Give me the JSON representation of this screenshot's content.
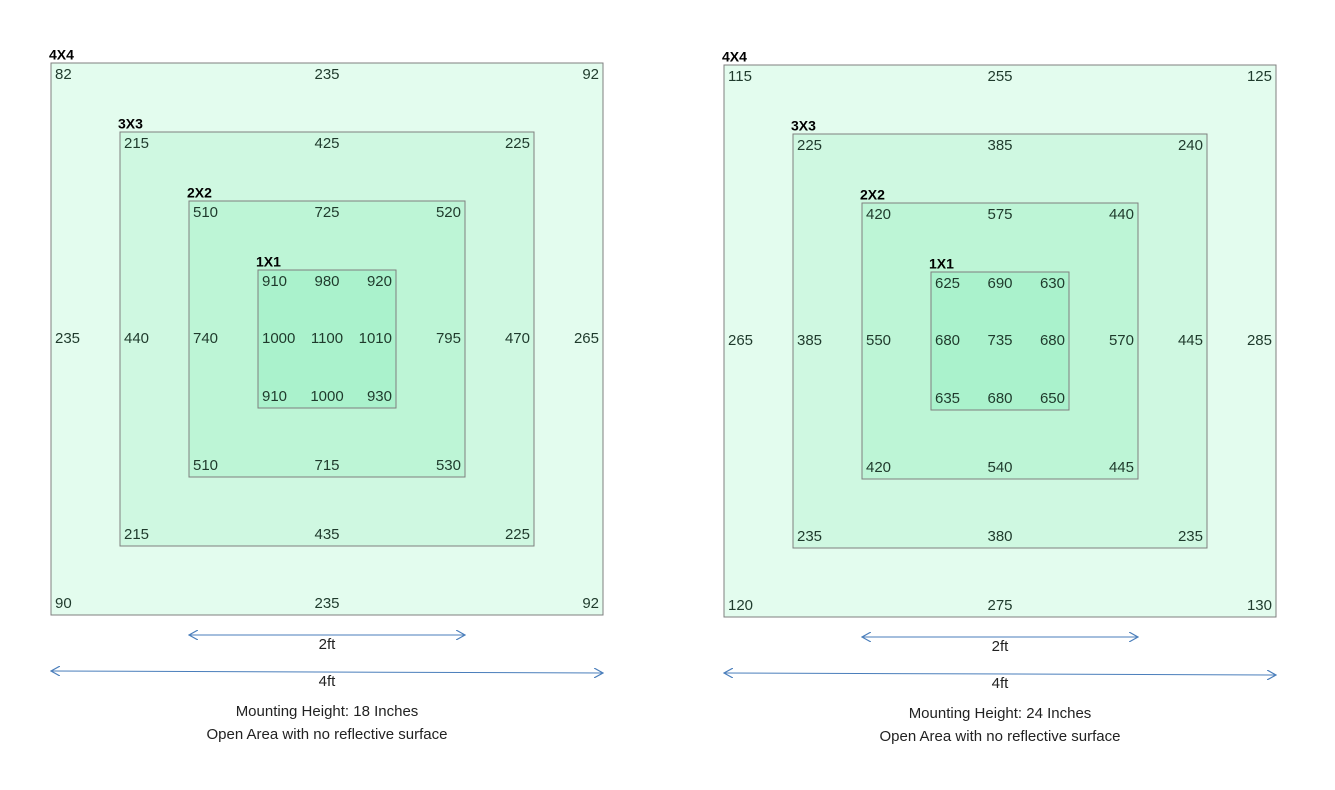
{
  "panels": [
    {
      "squares": [
        {
          "label": "4X4",
          "top": [
            82,
            235,
            92
          ],
          "middle": [
            235,
            265
          ],
          "bottom": [
            90,
            235,
            92
          ]
        },
        {
          "label": "3X3",
          "top": [
            215,
            425,
            225
          ],
          "middle": [
            440,
            470
          ],
          "bottom": [
            215,
            435,
            225
          ]
        },
        {
          "label": "2X2",
          "top": [
            510,
            725,
            520
          ],
          "middle": [
            740,
            795
          ],
          "bottom": [
            510,
            715,
            530
          ]
        },
        {
          "label": "1X1",
          "top": [
            910,
            980,
            920
          ],
          "middle": [
            1000,
            1100,
            1010
          ],
          "bottom": [
            910,
            1000,
            930
          ]
        }
      ],
      "dims": [
        "2ft",
        "4ft"
      ],
      "caption": [
        "Mounting Height:  18 Inches",
        "Open Area with no reflective surface"
      ]
    },
    {
      "squares": [
        {
          "label": "4X4",
          "top": [
            115,
            255,
            125
          ],
          "middle": [
            265,
            285
          ],
          "bottom": [
            120,
            275,
            130
          ]
        },
        {
          "label": "3X3",
          "top": [
            225,
            385,
            240
          ],
          "middle": [
            385,
            445
          ],
          "bottom": [
            235,
            380,
            235
          ]
        },
        {
          "label": "2X2",
          "top": [
            420,
            575,
            440
          ],
          "middle": [
            550,
            570
          ],
          "bottom": [
            420,
            540,
            445
          ]
        },
        {
          "label": "1X1",
          "top": [
            625,
            690,
            630
          ],
          "middle": [
            680,
            735,
            680
          ],
          "bottom": [
            635,
            680,
            650
          ]
        }
      ],
      "dims": [
        "2ft",
        "4ft"
      ],
      "caption": [
        "Mounting Height:  24 Inches",
        "Open Area with no reflective surface"
      ]
    }
  ]
}
